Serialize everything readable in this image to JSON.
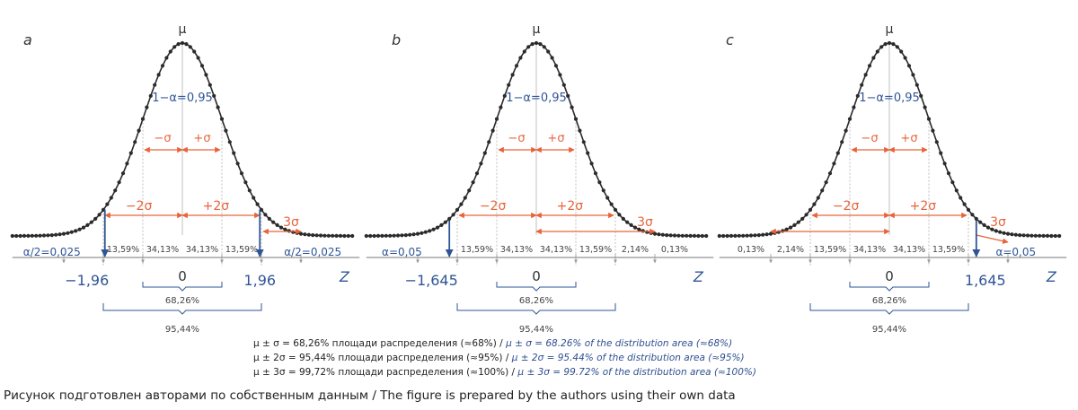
{
  "panels": [
    {
      "letter": "a",
      "mu": "μ",
      "conf": "1−α=0,95",
      "sigma_left": "−σ",
      "sigma_right": "+σ",
      "two_left": "−2σ",
      "two_right": "+2σ",
      "three": "3σ",
      "left_tail": "α/2=0,025",
      "right_tail": "α/2=0,025",
      "pcts": [
        "13,59%",
        "34,13%",
        "34,13%",
        "13,59%"
      ],
      "zero": "0",
      "crit_left": "−1,96",
      "crit_right": "1,96",
      "z": "Z",
      "inner_brace": "68,26%",
      "outer_brace": "95,44%"
    },
    {
      "letter": "b",
      "mu": "μ",
      "conf": "1−α=0,95",
      "sigma_left": "−σ",
      "sigma_right": "+σ",
      "two_left": "−2σ",
      "two_right": "+2σ",
      "three": "3σ",
      "left_tail": "α=0,05",
      "pcts": [
        "13,59%",
        "34,13%",
        "34,13%",
        "13,59%",
        "2,14%",
        "0,13%"
      ],
      "zero": "0",
      "crit_left": "−1,645",
      "z": "Z",
      "inner_brace": "68,26%",
      "outer_brace": "95,44%"
    },
    {
      "letter": "c",
      "mu": "μ",
      "conf": "1−α=0,95",
      "sigma_left": "−σ",
      "sigma_right": "+σ",
      "two_left": "−2σ",
      "two_right": "+2σ",
      "three": "3σ",
      "right_tail": "α=0,05",
      "pcts": [
        "0,13%",
        "2,14%",
        "13,59%",
        "34,13%",
        "34,13%",
        "13,59%"
      ],
      "zero": "0",
      "crit_right": "1,645",
      "z": "Z",
      "inner_brace": "68,26%",
      "outer_brace": "95,44%"
    }
  ],
  "legend": [
    {
      "ru": "μ ± σ = 68,26% площади распределения (≈68%)",
      "en": "μ ± σ = 68.26% of the distribution area (≈68%)"
    },
    {
      "ru": "μ ± 2σ = 95,44% площади распределения (≈95%)",
      "en": "μ ± 2σ = 95.44% of the distribution area (≈95%)"
    },
    {
      "ru": "μ ± 3σ = 99,72% площади распределения (≈100%)",
      "en": "μ ± 3σ = 99.72% of the distribution area (≈100%)"
    }
  ],
  "caption": "Рисунок подготовлен авторами по собственным данным / The figure is prepared by the authors using their own data",
  "colors": {
    "curve": "#2b2b2b",
    "orange": "#e8633a",
    "blue": "#2f5597",
    "gray": "#9a9a9a"
  }
}
